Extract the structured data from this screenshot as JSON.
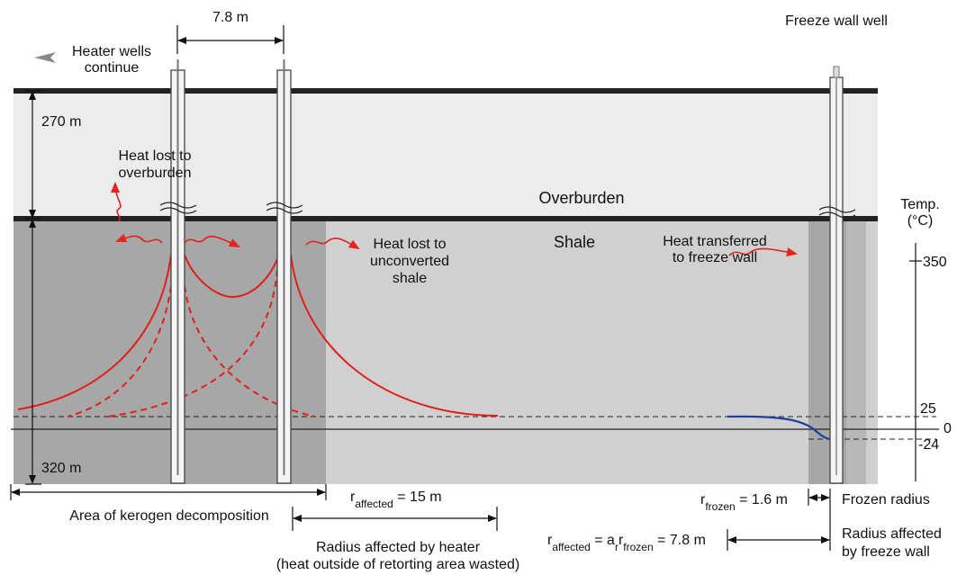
{
  "dimensions": {
    "well_spacing": "7.8 m",
    "overburden_thickness": "270 m",
    "shale_thickness": "320 m"
  },
  "labels": {
    "heater_wells": [
      "Heater wells",
      "continue"
    ],
    "freeze_wall_well": "Freeze wall well",
    "overburden": "Overburden",
    "shale": "Shale",
    "heat_lost_overburden": [
      "Heat lost to",
      "overburden"
    ],
    "heat_lost_shale": [
      "Heat lost to",
      "unconverted",
      "shale"
    ],
    "heat_transferred": [
      "Heat transferred",
      "to freeze wall"
    ]
  },
  "temperature_scale": {
    "title": [
      "Temp.",
      "(°C)"
    ],
    "ticks": [
      350,
      25,
      0,
      -24
    ]
  },
  "annotations": {
    "kerogen_area": "Area of kerogen decomposition",
    "r_affected_heater": [
      {
        "text": "r"
      },
      {
        "sub": "affected"
      },
      {
        "text": " = 15 m"
      }
    ],
    "r_frozen": [
      {
        "text": "r"
      },
      {
        "sub": "frozen"
      },
      {
        "text": " = 1.6 m"
      }
    ],
    "frozen_radius": "Frozen radius",
    "r_affected_freeze": [
      {
        "text": "r"
      },
      {
        "sub": "affected"
      },
      {
        "text": " = a"
      },
      {
        "sub": "r"
      },
      {
        "text": "r"
      },
      {
        "sub": "frozen"
      },
      {
        "text": " = 7.8 m"
      }
    ],
    "heater_radius": [
      "Radius affected by heater",
      "(heat outside of retorting area wasted)"
    ],
    "freeze_radius": [
      "Radius affected",
      "by freeze wall"
    ]
  }
}
